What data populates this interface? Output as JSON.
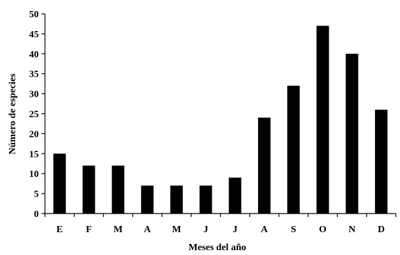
{
  "chart_data": {
    "type": "bar",
    "categories": [
      "E",
      "F",
      "M",
      "A",
      "M",
      "J",
      "J",
      "A",
      "S",
      "O",
      "N",
      "D"
    ],
    "values": [
      15,
      12,
      12,
      7,
      7,
      7,
      9,
      24,
      32,
      47,
      40,
      26
    ],
    "xlabel": "Meses del año",
    "ylabel": "Número de especies",
    "ylim": [
      0,
      50
    ],
    "yticks": [
      0,
      5,
      10,
      15,
      20,
      25,
      30,
      35,
      40,
      45,
      50
    ],
    "grid": false,
    "legend": "none",
    "bar_color": "#000000"
  }
}
